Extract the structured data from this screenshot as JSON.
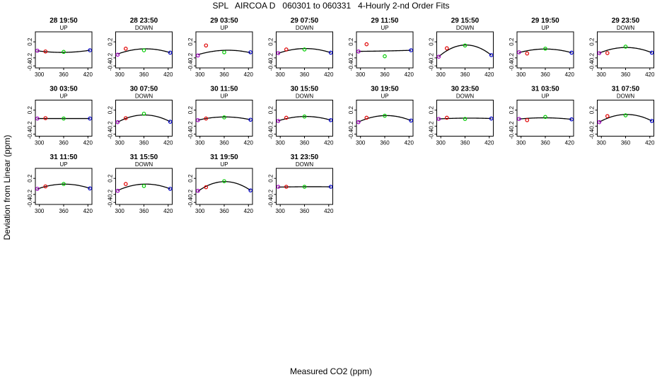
{
  "title": "SPL   AIRCOA D   060301 to 060331   4-Hourly 2-nd Order Fits",
  "xlabel": "Measured CO2 (ppm)",
  "ylabel": "Deviation from Linear (ppm)",
  "colors": {
    "axes": "#000000",
    "fit_line": "#000000",
    "standard_1": "#a000c0",
    "standard_2": "#e00000",
    "standard_3": "#00cc00",
    "standard_4": "#0000cc"
  },
  "chart_data": {
    "type": "scatter",
    "layout": "small-multiples 4 rows x 8 columns",
    "xlim": [
      290,
      430
    ],
    "ylim": [
      -0.45,
      0.45
    ],
    "xticks": [
      300,
      360,
      420
    ],
    "xtick_labels": [
      "300",
      "360",
      "420"
    ],
    "yticks": [
      0.2,
      -0.2,
      -0.4
    ],
    "ytick_labels": [
      "0.2",
      "-0.2",
      "-0.4"
    ],
    "standards_x": [
      295,
      315,
      360,
      425
    ],
    "panels": [
      {
        "title": "28 19:50",
        "mode": "UP",
        "points": [
          -0.02,
          -0.04,
          -0.05,
          -0.01
        ],
        "fit": [
          -0.02,
          -0.05,
          -0.06,
          -0.01
        ]
      },
      {
        "title": "28 23:50",
        "mode": "DOWN",
        "points": [
          -0.12,
          0.03,
          -0.01,
          -0.07
        ],
        "fit": [
          -0.11,
          -0.03,
          0.02,
          -0.07
        ]
      },
      {
        "title": "29 03:50",
        "mode": "UP",
        "points": [
          -0.14,
          0.11,
          -0.06,
          -0.06
        ],
        "fit": [
          -0.13,
          -0.05,
          -0.02,
          -0.07
        ]
      },
      {
        "title": "29 07:50",
        "mode": "DOWN",
        "points": [
          -0.08,
          0.01,
          0.01,
          -0.07
        ],
        "fit": [
          -0.09,
          -0.02,
          0.03,
          -0.07
        ]
      },
      {
        "title": "29 11:50",
        "mode": "UP",
        "points": [
          -0.04,
          0.14,
          -0.16,
          -0.01
        ],
        "fit": [
          -0.04,
          -0.03,
          -0.03,
          -0.01
        ]
      },
      {
        "title": "29 15:50",
        "mode": "DOWN",
        "points": [
          -0.17,
          0.04,
          0.11,
          -0.13
        ],
        "fit": [
          -0.18,
          0.0,
          0.11,
          -0.13
        ]
      },
      {
        "title": "29 19:50",
        "mode": "UP",
        "points": [
          -0.06,
          -0.09,
          0.03,
          -0.07
        ],
        "fit": [
          -0.07,
          -0.02,
          0.02,
          -0.07
        ]
      },
      {
        "title": "29 23:50",
        "mode": "DOWN",
        "points": [
          -0.08,
          -0.08,
          0.08,
          -0.07
        ],
        "fit": [
          -0.08,
          -0.01,
          0.06,
          -0.07
        ]
      },
      {
        "title": "30 03:50",
        "mode": "UP",
        "points": [
          -0.01,
          0.0,
          -0.01,
          -0.01
        ],
        "fit": [
          -0.01,
          -0.01,
          -0.01,
          -0.01
        ]
      },
      {
        "title": "30 07:50",
        "mode": "DOWN",
        "points": [
          -0.1,
          0.0,
          0.11,
          -0.09
        ],
        "fit": [
          -0.1,
          -0.01,
          0.08,
          -0.09
        ]
      },
      {
        "title": "30 11:50",
        "mode": "UP",
        "points": [
          -0.05,
          -0.01,
          0.02,
          -0.04
        ],
        "fit": [
          -0.05,
          -0.01,
          0.03,
          -0.04
        ]
      },
      {
        "title": "30 15:50",
        "mode": "DOWN",
        "points": [
          -0.07,
          0.01,
          0.04,
          -0.05
        ],
        "fit": [
          -0.07,
          -0.01,
          0.04,
          -0.05
        ]
      },
      {
        "title": "30 19:50",
        "mode": "UP",
        "points": [
          -0.1,
          0.01,
          0.06,
          -0.06
        ],
        "fit": [
          -0.1,
          -0.01,
          0.06,
          -0.06
        ]
      },
      {
        "title": "30 23:50",
        "mode": "DOWN",
        "points": [
          -0.02,
          0.01,
          -0.02,
          -0.01
        ],
        "fit": [
          -0.02,
          -0.01,
          0.0,
          -0.01
        ]
      },
      {
        "title": "31 03:50",
        "mode": "UP",
        "points": [
          -0.02,
          -0.05,
          0.03,
          -0.03
        ],
        "fit": [
          -0.02,
          -0.01,
          0.01,
          -0.03
        ]
      },
      {
        "title": "31 07:50",
        "mode": "DOWN",
        "points": [
          -0.1,
          0.05,
          0.07,
          -0.07
        ],
        "fit": [
          -0.1,
          0.0,
          0.09,
          -0.07
        ]
      },
      {
        "title": "31 11:50",
        "mode": "UP",
        "points": [
          -0.06,
          0.0,
          0.06,
          -0.05
        ],
        "fit": [
          -0.06,
          -0.01,
          0.06,
          -0.05
        ]
      },
      {
        "title": "31 15:50",
        "mode": "DOWN",
        "points": [
          -0.11,
          0.06,
          0.01,
          -0.06
        ],
        "fit": [
          -0.11,
          -0.01,
          0.05,
          -0.06
        ]
      },
      {
        "title": "31 19:50",
        "mode": "UP",
        "points": [
          -0.11,
          -0.02,
          0.13,
          -0.1
        ],
        "fit": [
          -0.11,
          -0.02,
          0.13,
          -0.1
        ]
      },
      {
        "title": "31 23:50",
        "mode": "DOWN",
        "points": [
          -0.01,
          -0.01,
          -0.01,
          -0.01
        ],
        "fit": [
          -0.02,
          -0.01,
          -0.01,
          -0.01
        ]
      }
    ]
  }
}
